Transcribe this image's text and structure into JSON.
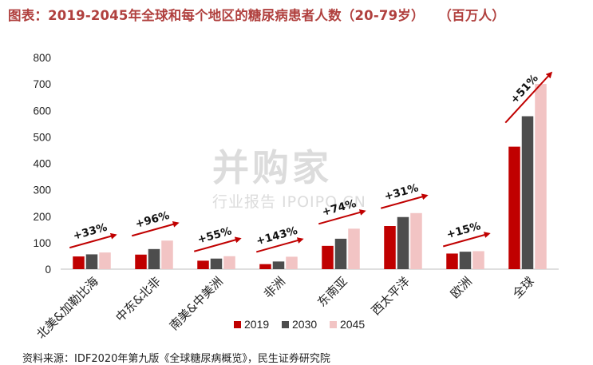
{
  "title": "图表：2019-2045年全球和每个地区的糖尿病患者人数（20-79岁）",
  "unit": "（百万人）",
  "source": "资料来源：IDF2020年第九版《全球糖尿病概览》，民生证券研究院",
  "watermark": {
    "brand": "并购家",
    "sub": "行业报告 IPOIPO.CN"
  },
  "colors": {
    "2019": "#c00000",
    "2030": "#4d4d4d",
    "2045": "#f2c4c4",
    "arrow": "#c00000"
  },
  "chart_data": {
    "type": "bar",
    "categories": [
      "北美&加勒比海",
      "中东&北非",
      "南美&中美洲",
      "非洲",
      "东南亚",
      "西太平洋",
      "欧洲",
      "全球"
    ],
    "series": [
      {
        "name": "2019",
        "values": [
          48,
          55,
          32,
          19,
          88,
          163,
          59,
          463
        ]
      },
      {
        "name": "2030",
        "values": [
          56,
          76,
          40,
          29,
          115,
          197,
          66,
          578
        ]
      },
      {
        "name": "2045",
        "values": [
          63,
          108,
          49,
          47,
          153,
          212,
          68,
          700
        ]
      }
    ],
    "growth_labels": [
      "+33%",
      "+96%",
      "+55%",
      "+143%",
      "+74%",
      "+31%",
      "+15%",
      "+51%"
    ],
    "ylim": [
      0,
      800
    ],
    "yticks": [
      "0",
      "100",
      "200",
      "300",
      "400",
      "500",
      "600",
      "700",
      "800"
    ],
    "grid": false,
    "legend_position": "bottom"
  }
}
